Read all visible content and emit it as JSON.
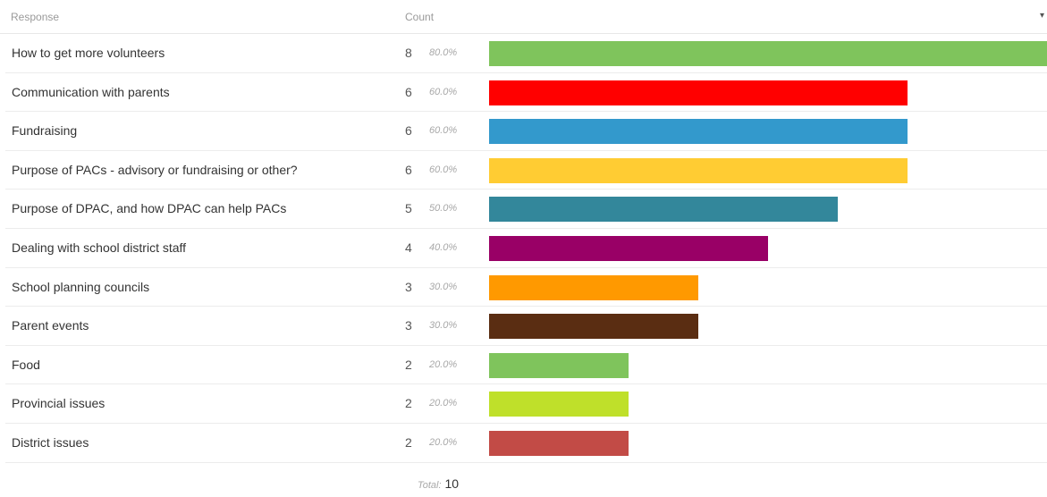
{
  "header": {
    "response_label": "Response",
    "count_label": "Count"
  },
  "chart_data": {
    "type": "bar",
    "orientation": "horizontal",
    "categories": [
      "How to get more volunteers",
      "Communication with parents",
      "Fundraising",
      "Purpose of PACs - advisory or fundraising or other?",
      "Purpose of DPAC, and how DPAC can help PACs",
      "Dealing with school district staff",
      "School planning councils",
      "Parent events",
      "Food",
      "Provincial issues",
      "District issues"
    ],
    "values": [
      8,
      6,
      6,
      6,
      5,
      4,
      3,
      3,
      2,
      2,
      2
    ],
    "percentages": [
      "80.0%",
      "60.0%",
      "60.0%",
      "60.0%",
      "50.0%",
      "40.0%",
      "30.0%",
      "30.0%",
      "20.0%",
      "20.0%",
      "20.0%"
    ],
    "colors": [
      "#7fc45c",
      "#ff0000",
      "#3399cc",
      "#ffcc33",
      "#33879b",
      "#990066",
      "#ff9900",
      "#5a2d12",
      "#7fc45c",
      "#bfe02a",
      "#c24b46"
    ],
    "xlim": [
      0,
      8
    ],
    "legend": "none",
    "grid": false
  },
  "total": {
    "label": "Total:",
    "value": "10"
  }
}
